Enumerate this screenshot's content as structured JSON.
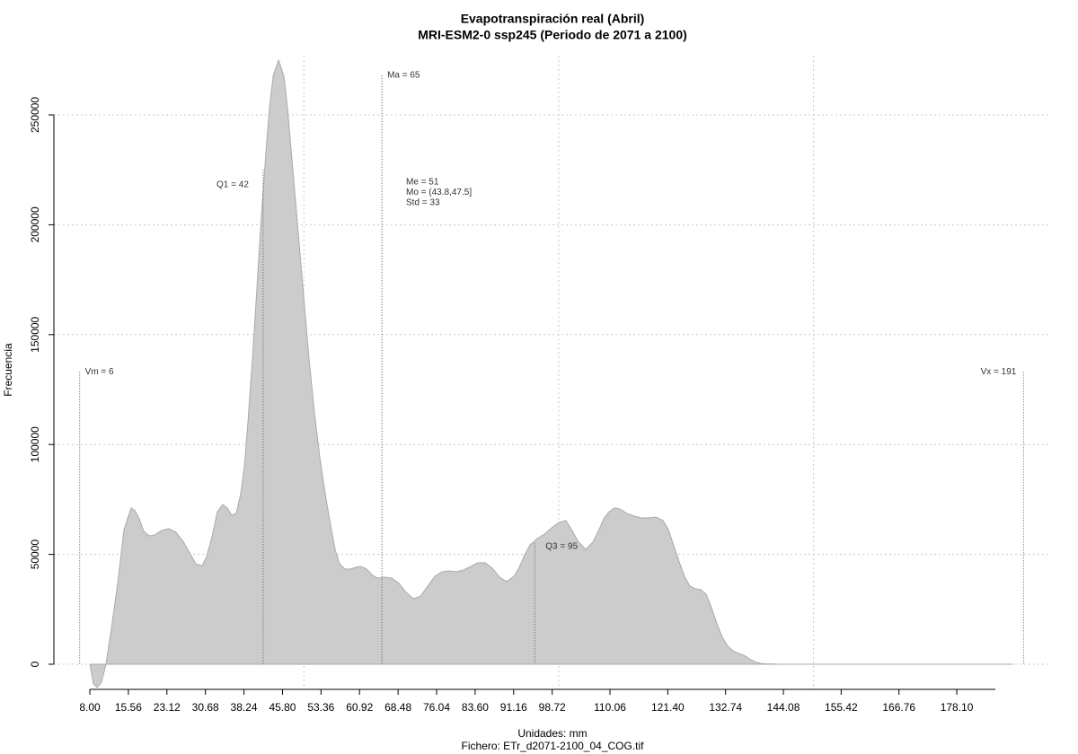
{
  "chart_data": {
    "type": "area",
    "title": "Evapotranspiración real (Abril)",
    "subtitle": "MRI-ESM2-0 ssp245 (Periodo de 2071 a 2100)",
    "xlabel": "Unidades: mm",
    "caption": "Fichero: ETr_d2071-2100_04_COG.tif",
    "ylabel": "Frecuencia",
    "color": "#cccccc",
    "x": [
      8.0,
      8.71,
      9.41,
      10.29,
      11.17,
      12.23,
      13.46,
      14.7,
      15.4,
      16.11,
      16.81,
      17.7,
      18.58,
      19.63,
      20.69,
      22.1,
      23.51,
      24.92,
      26.33,
      27.74,
      28.8,
      30.03,
      30.91,
      31.97,
      33.03,
      34.09,
      34.97,
      35.85,
      36.73,
      37.61,
      38.32,
      39.02,
      39.91,
      40.79,
      41.67,
      42.55,
      43.25,
      43.96,
      45.02,
      46.08,
      46.78,
      47.84,
      48.9,
      49.95,
      51.01,
      52.07,
      53.13,
      54.18,
      55.24,
      56.12,
      57.0,
      58.06,
      59.12,
      60.18,
      61.23,
      62.29,
      63.35,
      64.41,
      65.82,
      67.23,
      68.64,
      70.05,
      71.46,
      72.87,
      74.28,
      75.69,
      77.1,
      78.51,
      79.92,
      81.33,
      82.74,
      84.15,
      85.56,
      86.97,
      88.38,
      89.79,
      91.2,
      92.26,
      93.32,
      94.37,
      95.78,
      97.19,
      98.61,
      100.02,
      101.43,
      102.48,
      103.89,
      105.3,
      106.71,
      107.77,
      108.83,
      109.89,
      110.94,
      112.0,
      113.41,
      114.82,
      116.23,
      117.64,
      119.05,
      120.46,
      121.52,
      122.58,
      123.64,
      124.69,
      125.75,
      126.81,
      127.87,
      128.93,
      129.98,
      131.04,
      132.1,
      133.16,
      134.22,
      135.27,
      136.33,
      137.39,
      138.44,
      139.5,
      140.56,
      143.73,
      149.02,
      166.65,
      189.21
    ],
    "values": [
      0,
      -9000,
      -10600,
      -8200,
      0,
      16300,
      36800,
      61300,
      66200,
      71100,
      69900,
      66200,
      60500,
      58400,
      58800,
      60900,
      61700,
      60000,
      55800,
      50100,
      45700,
      44900,
      49000,
      58000,
      69400,
      72700,
      71100,
      67800,
      68600,
      77600,
      89900,
      110300,
      138900,
      171600,
      204300,
      232900,
      253300,
      267600,
      274900,
      267600,
      253300,
      224700,
      196100,
      167500,
      138900,
      114400,
      94000,
      77600,
      63300,
      52300,
      45700,
      43300,
      43300,
      44100,
      44500,
      43300,
      40800,
      39200,
      39600,
      39200,
      36800,
      32700,
      29800,
      31000,
      35500,
      40000,
      42100,
      42500,
      42100,
      42900,
      44500,
      46200,
      46200,
      43700,
      39600,
      37600,
      40000,
      44100,
      49800,
      54300,
      57200,
      59200,
      62100,
      64500,
      65400,
      61300,
      55600,
      52300,
      55600,
      60500,
      66200,
      69400,
      71100,
      70700,
      68600,
      67400,
      66600,
      66600,
      67000,
      65400,
      61300,
      53900,
      46600,
      40000,
      35500,
      34300,
      33900,
      31900,
      25700,
      18400,
      12300,
      8200,
      6100,
      4900,
      4100,
      2500,
      1200,
      400,
      200,
      0,
      0,
      0,
      0
    ],
    "xlim": [
      1.3,
      196.6
    ],
    "ylim": [
      -11438,
      276960
    ],
    "xticks": [
      {
        "value": 8,
        "label": "8.00"
      },
      15.56,
      23.12,
      30.68,
      38.24,
      {
        "value": 45.8,
        "label": "45.80"
      },
      53.36,
      60.92,
      68.48,
      76.04,
      {
        "value": 83.6,
        "label": "83.60"
      },
      91.16,
      98.72,
      110.06,
      {
        "value": 121.4,
        "label": "121.40"
      },
      132.74,
      144.08,
      155.42,
      166.76,
      {
        "value": 178.1,
        "label": "178.10"
      }
    ],
    "yticks": [
      0,
      50000,
      100000,
      150000,
      200000,
      250000
    ],
    "xgrid": [
      50,
      100,
      150
    ],
    "grid": true,
    "markers": [
      {
        "label": "Vm = 6",
        "x": 6,
        "y": 133000
      },
      {
        "label": "Q1 = 42",
        "x": 42,
        "y": 225000
      },
      {
        "label": "Ma = 65",
        "x": 65.3,
        "y": 268000
      },
      {
        "label": "Q3 = 95",
        "x": 95.3,
        "y": 55000
      },
      {
        "label": "Vx = 191",
        "x": 191.2,
        "y": 133000
      }
    ],
    "stats": [
      "Me = 51",
      "Mo = (43.8,47.5]",
      "Std = 33"
    ]
  }
}
